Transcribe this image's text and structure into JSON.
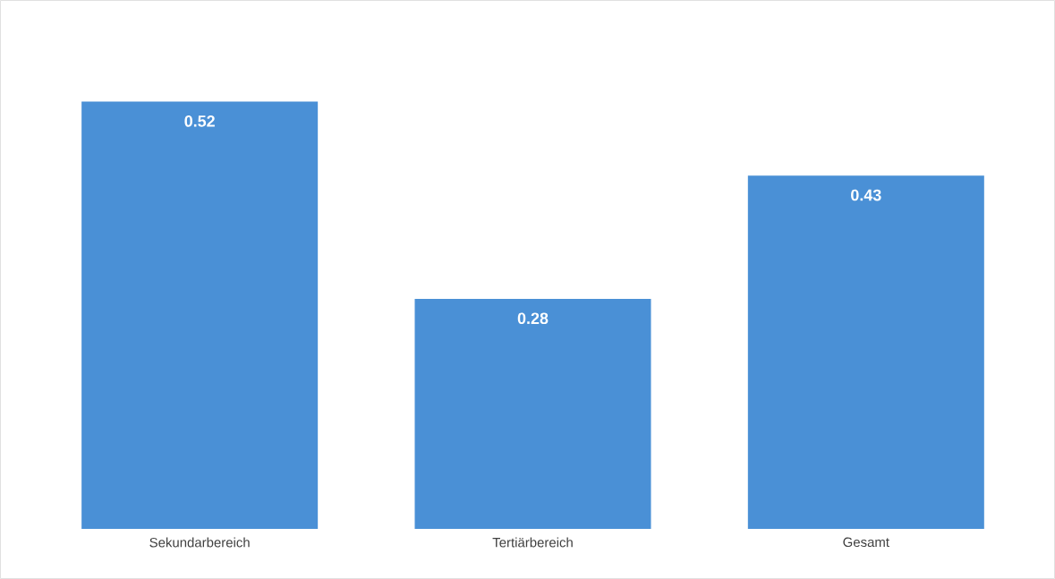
{
  "chart_data": {
    "type": "bar",
    "categories": [
      "Sekundarbereich",
      "Tertiärbereich",
      "Gesamt"
    ],
    "values": [
      0.52,
      0.28,
      0.43
    ],
    "color": "#4a90d6",
    "data_labels": true
  }
}
